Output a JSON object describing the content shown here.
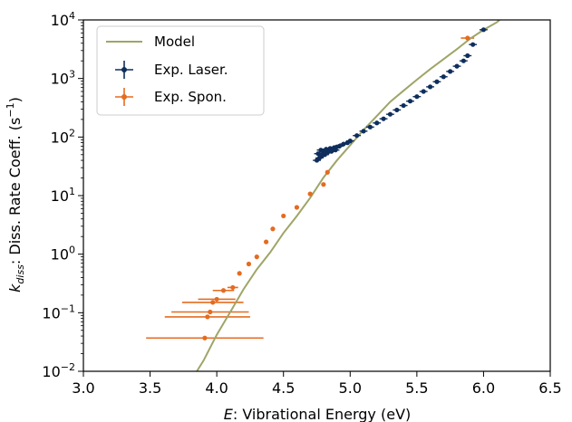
{
  "chart_data": {
    "type": "scatter",
    "xlabel": {
      "italic": "E",
      "rest": ": Vibrational Energy (eV)"
    },
    "ylabel": {
      "k": "k",
      "sub": "diss",
      "rest": ": Diss. Rate Coeff. (s",
      "sup": "−1",
      "close": ")"
    },
    "x_range": [
      3.0,
      6.5
    ],
    "y_range_log10": [
      -2,
      4
    ],
    "y_scale": "log",
    "grid": false,
    "legend_position": "top-left",
    "x_ticks": [
      "3.0",
      "3.5",
      "4.0",
      "4.5",
      "5.0",
      "5.5",
      "6.0",
      "6.5"
    ],
    "y_ticks": [
      {
        "base": "10",
        "exp": "4"
      },
      {
        "base": "10",
        "exp": "3"
      },
      {
        "base": "10",
        "exp": "2"
      },
      {
        "base": "10",
        "exp": "1"
      },
      {
        "base": "10",
        "exp": "0"
      },
      {
        "base": "10",
        "exp": "−1"
      },
      {
        "base": "10",
        "exp": "−2"
      }
    ],
    "series": [
      {
        "name": "Model",
        "kind": "line",
        "color": "#9fa567",
        "x": [
          3.85,
          3.9,
          4.0,
          4.1,
          4.2,
          4.3,
          4.4,
          4.5,
          4.6,
          4.7,
          4.8,
          4.9,
          5.0,
          5.1,
          5.2,
          5.3,
          5.4,
          5.5,
          5.6,
          5.7,
          5.8,
          5.9,
          6.0,
          6.1,
          6.12
        ],
        "y": [
          0.01,
          0.0151,
          0.042,
          0.102,
          0.251,
          0.55,
          1.07,
          2.3,
          4.47,
          9.1,
          20.4,
          39.8,
          72.4,
          132,
          229,
          398,
          617,
          955,
          1445,
          2138,
          3162,
          4786,
          6761,
          9120,
          10000
        ]
      },
      {
        "name": "Exp. Laser.",
        "kind": "scatter",
        "color": "#0e2e5d",
        "x": [
          4.75,
          4.76,
          4.77,
          4.78,
          4.79,
          4.8,
          4.81,
          4.82,
          4.83,
          4.84,
          4.85,
          4.86,
          4.87,
          4.88,
          4.89,
          4.9,
          4.92,
          4.95,
          4.98,
          5.0,
          5.05,
          5.1,
          5.15,
          5.2,
          5.25,
          5.3,
          5.35,
          5.4,
          5.45,
          5.5,
          5.55,
          5.6,
          5.65,
          5.7,
          5.75,
          5.8,
          5.85,
          5.88,
          5.92,
          6.0
        ],
        "y": [
          40,
          52,
          44,
          60,
          48,
          55,
          50,
          62,
          54,
          58,
          64,
          57,
          61,
          66,
          60,
          68,
          70,
          76,
          80,
          86,
          106,
          126,
          148,
          174,
          205,
          245,
          290,
          345,
          410,
          490,
          600,
          720,
          880,
          1070,
          1320,
          1620,
          2000,
          2450,
          3800,
          6800
        ],
        "x_err": 0.03
      },
      {
        "name": "Exp. Spon.",
        "kind": "scatter",
        "color": "#e56b1f",
        "x": [
          3.91,
          3.93,
          3.95,
          3.97,
          4.0,
          4.05,
          4.12,
          4.17,
          4.24,
          4.3,
          4.37,
          4.42,
          4.5,
          4.6,
          4.7,
          4.8,
          4.83,
          5.88
        ],
        "y": [
          0.037,
          0.085,
          0.103,
          0.15,
          0.17,
          0.24,
          0.27,
          0.47,
          0.68,
          0.9,
          1.62,
          2.7,
          4.5,
          6.3,
          10.7,
          15.5,
          25,
          4900
        ],
        "x_err": [
          0.44,
          0.32,
          0.29,
          0.23,
          0.14,
          0.08,
          0.04,
          0.0,
          0.0,
          0.0,
          0.0,
          0.0,
          0.0,
          0.0,
          0.0,
          0.0,
          0.0,
          0.05
        ]
      }
    ]
  }
}
